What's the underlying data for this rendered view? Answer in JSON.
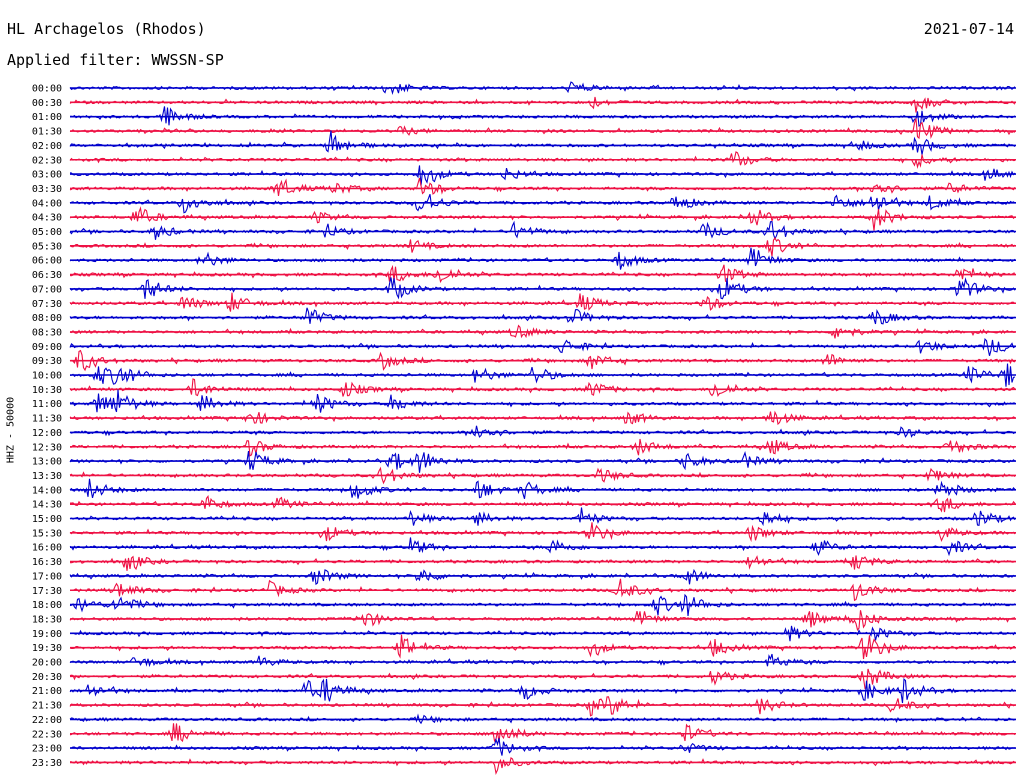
{
  "header": {
    "station": "HL Archagelos (Rhodos)",
    "date": "2021-07-14",
    "filter": "Applied filter: WWSSN-SP"
  },
  "chart_data": {
    "type": "line",
    "ylabel": "HHZ - 50000",
    "trace_colors": [
      "#0000cc",
      "#ee1144"
    ],
    "rows": [
      {
        "label": "00:00",
        "events": [
          {
            "t": 0.336,
            "a": 0.8
          },
          {
            "t": 0.53,
            "a": 0.55
          }
        ]
      },
      {
        "label": "00:30",
        "events": [
          {
            "t": 0.55,
            "a": 0.55
          },
          {
            "t": 0.895,
            "a": 0.9
          }
        ]
      },
      {
        "label": "01:00",
        "events": [
          {
            "t": 0.1,
            "a": 1.0
          },
          {
            "t": 0.895,
            "a": 0.9
          }
        ]
      },
      {
        "label": "01:30",
        "events": [
          {
            "t": 0.895,
            "a": 1.3
          },
          {
            "t": 0.35,
            "a": 0.4
          }
        ]
      },
      {
        "label": "02:00",
        "events": [
          {
            "t": 0.275,
            "a": 1.3
          },
          {
            "t": 0.83,
            "a": 0.5
          },
          {
            "t": 0.895,
            "a": 0.9
          }
        ]
      },
      {
        "label": "02:30",
        "events": [
          {
            "t": 0.7,
            "a": 0.9
          },
          {
            "t": 0.895,
            "a": 0.6
          }
        ]
      },
      {
        "label": "03:00",
        "events": [
          {
            "t": 0.37,
            "a": 1.2
          },
          {
            "t": 0.46,
            "a": 0.6
          },
          {
            "t": 0.97,
            "a": 0.6
          }
        ]
      },
      {
        "label": "03:30",
        "events": [
          {
            "t": 0.22,
            "a": 0.9
          },
          {
            "t": 0.28,
            "a": 0.5
          },
          {
            "t": 0.37,
            "a": 1.0
          },
          {
            "t": 0.85,
            "a": 0.9
          },
          {
            "t": 0.93,
            "a": 0.5
          }
        ]
      },
      {
        "label": "04:00",
        "events": [
          {
            "t": 0.12,
            "a": 1.0
          },
          {
            "t": 0.37,
            "a": 1.3
          },
          {
            "t": 0.64,
            "a": 0.9
          },
          {
            "t": 0.81,
            "a": 0.8
          },
          {
            "t": 0.85,
            "a": 1.1
          },
          {
            "t": 0.91,
            "a": 0.7
          }
        ]
      },
      {
        "label": "04:30",
        "events": [
          {
            "t": 0.07,
            "a": 1.0
          },
          {
            "t": 0.26,
            "a": 0.5
          },
          {
            "t": 0.72,
            "a": 1.0
          },
          {
            "t": 0.85,
            "a": 1.2
          }
        ]
      },
      {
        "label": "05:00",
        "events": [
          {
            "t": 0.09,
            "a": 0.7
          },
          {
            "t": 0.27,
            "a": 0.6
          },
          {
            "t": 0.47,
            "a": 0.8
          },
          {
            "t": 0.67,
            "a": 0.8
          },
          {
            "t": 0.74,
            "a": 1.1
          }
        ]
      },
      {
        "label": "05:30",
        "events": [
          {
            "t": 0.36,
            "a": 0.6
          },
          {
            "t": 0.74,
            "a": 1.0
          }
        ]
      },
      {
        "label": "06:00",
        "events": [
          {
            "t": 0.14,
            "a": 0.8
          },
          {
            "t": 0.58,
            "a": 0.9
          },
          {
            "t": 0.72,
            "a": 1.1
          }
        ]
      },
      {
        "label": "06:30",
        "events": [
          {
            "t": 0.34,
            "a": 0.9
          },
          {
            "t": 0.39,
            "a": 0.9
          },
          {
            "t": 0.69,
            "a": 1.0
          },
          {
            "t": 0.94,
            "a": 0.8
          }
        ]
      },
      {
        "label": "07:00",
        "events": [
          {
            "t": 0.08,
            "a": 1.1
          },
          {
            "t": 0.34,
            "a": 1.2
          },
          {
            "t": 0.69,
            "a": 1.2
          },
          {
            "t": 0.94,
            "a": 1.2
          }
        ]
      },
      {
        "label": "07:30",
        "events": [
          {
            "t": 0.12,
            "a": 0.8
          },
          {
            "t": 0.17,
            "a": 0.9
          },
          {
            "t": 0.54,
            "a": 0.9
          },
          {
            "t": 0.67,
            "a": 0.8
          }
        ]
      },
      {
        "label": "08:00",
        "events": [
          {
            "t": 0.25,
            "a": 1.0
          },
          {
            "t": 0.53,
            "a": 0.9
          },
          {
            "t": 0.85,
            "a": 0.9
          }
        ]
      },
      {
        "label": "08:30",
        "events": [
          {
            "t": 0.47,
            "a": 0.7
          },
          {
            "t": 0.81,
            "a": 0.8
          }
        ]
      },
      {
        "label": "09:00",
        "events": [
          {
            "t": 0.52,
            "a": 0.8
          },
          {
            "t": 0.9,
            "a": 0.7
          },
          {
            "t": 0.97,
            "a": 1.0
          }
        ]
      },
      {
        "label": "09:30",
        "events": [
          {
            "t": 0.01,
            "a": 1.1
          },
          {
            "t": 0.33,
            "a": 0.8
          },
          {
            "t": 0.55,
            "a": 0.8
          },
          {
            "t": 0.8,
            "a": 0.7
          }
        ]
      },
      {
        "label": "10:00",
        "events": [
          {
            "t": 0.03,
            "a": 1.0
          },
          {
            "t": 0.05,
            "a": 1.0
          },
          {
            "t": 0.43,
            "a": 0.8
          },
          {
            "t": 0.49,
            "a": 0.9
          },
          {
            "t": 0.95,
            "a": 0.8
          },
          {
            "t": 0.99,
            "a": 1.1
          }
        ]
      },
      {
        "label": "10:30",
        "events": [
          {
            "t": 0.13,
            "a": 0.9
          },
          {
            "t": 0.29,
            "a": 0.8
          },
          {
            "t": 0.55,
            "a": 0.8
          },
          {
            "t": 0.68,
            "a": 1.0
          }
        ]
      },
      {
        "label": "11:00",
        "events": [
          {
            "t": 0.03,
            "a": 1.2
          },
          {
            "t": 0.05,
            "a": 1.0
          },
          {
            "t": 0.14,
            "a": 0.8
          },
          {
            "t": 0.26,
            "a": 1.0
          },
          {
            "t": 0.34,
            "a": 0.8
          }
        ]
      },
      {
        "label": "11:30",
        "events": [
          {
            "t": 0.19,
            "a": 0.8
          },
          {
            "t": 0.59,
            "a": 0.7
          },
          {
            "t": 0.74,
            "a": 0.9
          }
        ]
      },
      {
        "label": "12:00",
        "events": [
          {
            "t": 0.43,
            "a": 0.9
          },
          {
            "t": 0.88,
            "a": 0.5
          }
        ]
      },
      {
        "label": "12:30",
        "events": [
          {
            "t": 0.19,
            "a": 0.8
          },
          {
            "t": 0.6,
            "a": 0.8
          },
          {
            "t": 0.74,
            "a": 0.8
          },
          {
            "t": 0.93,
            "a": 0.8
          }
        ]
      },
      {
        "label": "13:00",
        "events": [
          {
            "t": 0.19,
            "a": 1.0
          },
          {
            "t": 0.34,
            "a": 1.0
          },
          {
            "t": 0.37,
            "a": 1.0
          },
          {
            "t": 0.65,
            "a": 0.8
          },
          {
            "t": 0.71,
            "a": 0.8
          }
        ]
      },
      {
        "label": "13:30",
        "events": [
          {
            "t": 0.33,
            "a": 0.9
          },
          {
            "t": 0.56,
            "a": 0.7
          },
          {
            "t": 0.91,
            "a": 0.6
          }
        ]
      },
      {
        "label": "14:00",
        "events": [
          {
            "t": 0.02,
            "a": 1.0
          },
          {
            "t": 0.3,
            "a": 1.0
          },
          {
            "t": 0.43,
            "a": 1.0
          },
          {
            "t": 0.48,
            "a": 0.8
          },
          {
            "t": 0.92,
            "a": 1.0
          }
        ]
      },
      {
        "label": "14:30",
        "events": [
          {
            "t": 0.14,
            "a": 0.9
          },
          {
            "t": 0.22,
            "a": 0.6
          },
          {
            "t": 0.92,
            "a": 0.9
          }
        ]
      },
      {
        "label": "15:00",
        "events": [
          {
            "t": 0.36,
            "a": 0.7
          },
          {
            "t": 0.43,
            "a": 0.6
          },
          {
            "t": 0.54,
            "a": 0.8
          },
          {
            "t": 0.73,
            "a": 0.9
          },
          {
            "t": 0.96,
            "a": 0.9
          }
        ]
      },
      {
        "label": "15:30",
        "events": [
          {
            "t": 0.27,
            "a": 0.8
          },
          {
            "t": 0.55,
            "a": 1.0
          },
          {
            "t": 0.72,
            "a": 0.8
          },
          {
            "t": 0.92,
            "a": 0.7
          }
        ]
      },
      {
        "label": "16:00",
        "events": [
          {
            "t": 0.36,
            "a": 0.8
          },
          {
            "t": 0.51,
            "a": 0.8
          },
          {
            "t": 0.79,
            "a": 0.8
          },
          {
            "t": 0.93,
            "a": 0.7
          }
        ]
      },
      {
        "label": "16:30",
        "events": [
          {
            "t": 0.06,
            "a": 0.9
          },
          {
            "t": 0.72,
            "a": 0.7
          },
          {
            "t": 0.83,
            "a": 0.8
          }
        ]
      },
      {
        "label": "17:00",
        "events": [
          {
            "t": 0.26,
            "a": 0.9
          },
          {
            "t": 0.37,
            "a": 0.8
          },
          {
            "t": 0.65,
            "a": 0.9
          }
        ]
      },
      {
        "label": "17:30",
        "events": [
          {
            "t": 0.05,
            "a": 0.8
          },
          {
            "t": 0.21,
            "a": 0.8
          },
          {
            "t": 0.58,
            "a": 1.2
          },
          {
            "t": 0.83,
            "a": 1.0
          }
        ]
      },
      {
        "label": "18:00",
        "events": [
          {
            "t": 0.01,
            "a": 0.7
          },
          {
            "t": 0.05,
            "a": 0.9
          },
          {
            "t": 0.62,
            "a": 1.0
          },
          {
            "t": 0.65,
            "a": 1.0
          }
        ]
      },
      {
        "label": "18:30",
        "events": [
          {
            "t": 0.31,
            "a": 0.9
          },
          {
            "t": 0.6,
            "a": 0.7
          },
          {
            "t": 0.78,
            "a": 0.9
          },
          {
            "t": 0.83,
            "a": 1.3
          }
        ]
      },
      {
        "label": "19:00",
        "events": [
          {
            "t": 0.76,
            "a": 0.7
          },
          {
            "t": 0.85,
            "a": 0.6
          }
        ]
      },
      {
        "label": "19:30",
        "events": [
          {
            "t": 0.35,
            "a": 1.1
          },
          {
            "t": 0.55,
            "a": 0.7
          },
          {
            "t": 0.68,
            "a": 0.8
          },
          {
            "t": 0.84,
            "a": 1.5
          }
        ]
      },
      {
        "label": "20:00",
        "events": [
          {
            "t": 0.07,
            "a": 0.6
          },
          {
            "t": 0.2,
            "a": 0.5
          },
          {
            "t": 0.74,
            "a": 0.7
          }
        ]
      },
      {
        "label": "20:30",
        "events": [
          {
            "t": 0.68,
            "a": 0.7
          },
          {
            "t": 0.84,
            "a": 1.3
          }
        ]
      },
      {
        "label": "21:00",
        "events": [
          {
            "t": 0.02,
            "a": 0.7
          },
          {
            "t": 0.25,
            "a": 0.9
          },
          {
            "t": 0.27,
            "a": 1.0
          },
          {
            "t": 0.48,
            "a": 0.8
          },
          {
            "t": 0.84,
            "a": 0.9
          },
          {
            "t": 0.88,
            "a": 1.1
          }
        ]
      },
      {
        "label": "21:30",
        "events": [
          {
            "t": 0.55,
            "a": 0.9
          },
          {
            "t": 0.57,
            "a": 0.8
          },
          {
            "t": 0.73,
            "a": 0.8
          },
          {
            "t": 0.87,
            "a": 0.8
          }
        ]
      },
      {
        "label": "22:00",
        "events": [
          {
            "t": 0.37,
            "a": 0.3
          }
        ]
      },
      {
        "label": "22:30",
        "events": [
          {
            "t": 0.11,
            "a": 1.0
          },
          {
            "t": 0.45,
            "a": 1.4
          },
          {
            "t": 0.65,
            "a": 0.9
          }
        ]
      },
      {
        "label": "23:00",
        "events": [
          {
            "t": 0.45,
            "a": 1.0
          },
          {
            "t": 0.65,
            "a": 0.5
          }
        ]
      },
      {
        "label": "23:30",
        "events": [
          {
            "t": 0.45,
            "a": 0.9
          }
        ]
      }
    ]
  }
}
